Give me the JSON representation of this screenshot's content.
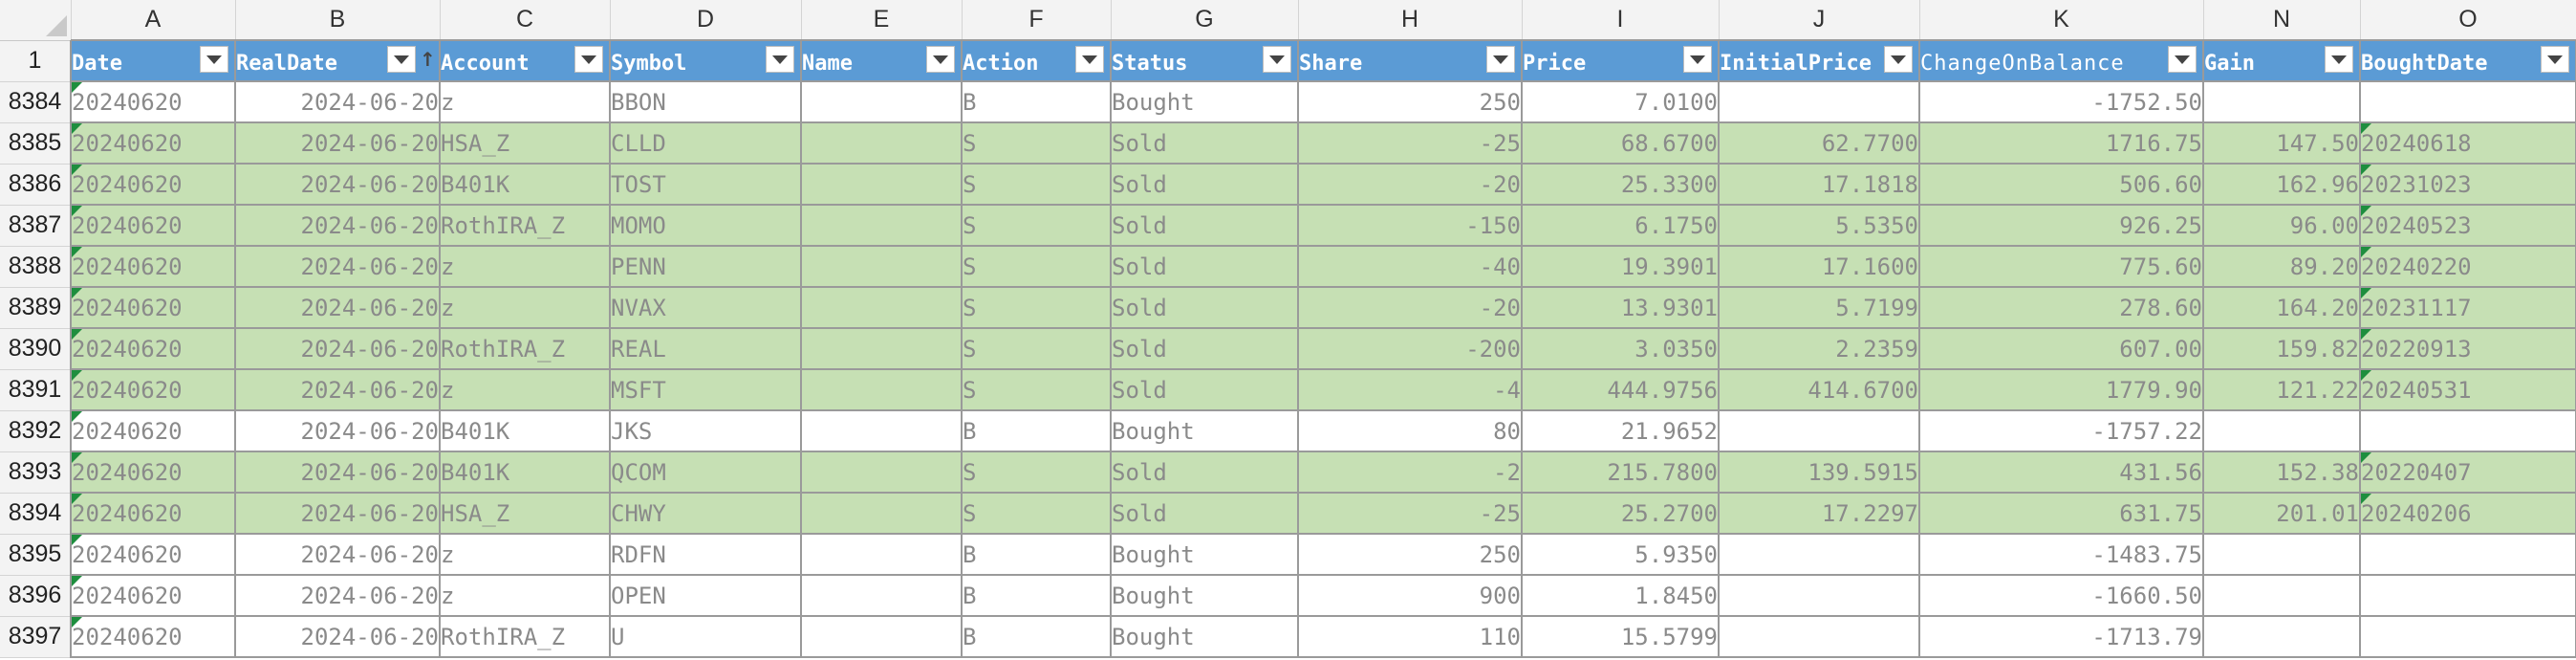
{
  "spreadsheet": {
    "column_letters": [
      "A",
      "B",
      "C",
      "D",
      "E",
      "F",
      "G",
      "H",
      "I",
      "J",
      "K",
      "N",
      "O"
    ],
    "header_row_number": "1",
    "headers": [
      {
        "key": "date",
        "label": "Date"
      },
      {
        "key": "realdate",
        "label": "RealDate",
        "sorted": true
      },
      {
        "key": "account",
        "label": "Account"
      },
      {
        "key": "symbol",
        "label": "Symbol"
      },
      {
        "key": "name",
        "label": "Name"
      },
      {
        "key": "action",
        "label": "Action"
      },
      {
        "key": "status",
        "label": "Status"
      },
      {
        "key": "share",
        "label": "Share"
      },
      {
        "key": "price",
        "label": "Price"
      },
      {
        "key": "initialprice",
        "label": "InitialPrice"
      },
      {
        "key": "change",
        "label": "ChangeOnBalance",
        "boxed": true
      },
      {
        "key": "gain",
        "label": "Gain"
      },
      {
        "key": "boughtdate",
        "label": "BoughtDate"
      }
    ],
    "rows": [
      {
        "num": "8384",
        "status_type": "bought",
        "cells": [
          "20240620",
          "2024-06-20",
          "z",
          "BBON",
          "",
          "B",
          "Bought",
          "250",
          "7.0100",
          "",
          "-1752.50",
          "",
          ""
        ],
        "marks": [
          0
        ]
      },
      {
        "num": "8385",
        "status_type": "sold",
        "cells": [
          "20240620",
          "2024-06-20",
          "HSA_Z",
          "CLLD",
          "",
          "S",
          "Sold",
          "-25",
          "68.6700",
          "62.7700",
          "1716.75",
          "147.50",
          "20240618"
        ],
        "marks": [
          0,
          12
        ]
      },
      {
        "num": "8386",
        "status_type": "sold",
        "cells": [
          "20240620",
          "2024-06-20",
          "B401K",
          "TOST",
          "",
          "S",
          "Sold",
          "-20",
          "25.3300",
          "17.1818",
          "506.60",
          "162.96",
          "20231023"
        ],
        "marks": [
          0,
          12
        ]
      },
      {
        "num": "8387",
        "status_type": "sold",
        "cells": [
          "20240620",
          "2024-06-20",
          "RothIRA_Z",
          "MOMO",
          "",
          "S",
          "Sold",
          "-150",
          "6.1750",
          "5.5350",
          "926.25",
          "96.00",
          "20240523"
        ],
        "marks": [
          0,
          12
        ]
      },
      {
        "num": "8388",
        "status_type": "sold",
        "cells": [
          "20240620",
          "2024-06-20",
          "z",
          "PENN",
          "",
          "S",
          "Sold",
          "-40",
          "19.3901",
          "17.1600",
          "775.60",
          "89.20",
          "20240220"
        ],
        "marks": [
          0,
          12
        ]
      },
      {
        "num": "8389",
        "status_type": "sold",
        "cells": [
          "20240620",
          "2024-06-20",
          "z",
          "NVAX",
          "",
          "S",
          "Sold",
          "-20",
          "13.9301",
          "5.7199",
          "278.60",
          "164.20",
          "20231117"
        ],
        "marks": [
          0,
          12
        ]
      },
      {
        "num": "8390",
        "status_type": "sold",
        "cells": [
          "20240620",
          "2024-06-20",
          "RothIRA_Z",
          "REAL",
          "",
          "S",
          "Sold",
          "-200",
          "3.0350",
          "2.2359",
          "607.00",
          "159.82",
          "20220913"
        ],
        "marks": [
          0,
          12
        ]
      },
      {
        "num": "8391",
        "status_type": "sold",
        "cells": [
          "20240620",
          "2024-06-20",
          "z",
          "MSFT",
          "",
          "S",
          "Sold",
          "-4",
          "444.9756",
          "414.6700",
          "1779.90",
          "121.22",
          "20240531"
        ],
        "marks": [
          0,
          12
        ]
      },
      {
        "num": "8392",
        "status_type": "bought",
        "cells": [
          "20240620",
          "2024-06-20",
          "B401K",
          "JKS",
          "",
          "B",
          "Bought",
          "80",
          "21.9652",
          "",
          "-1757.22",
          "",
          ""
        ],
        "marks": [
          0
        ]
      },
      {
        "num": "8393",
        "status_type": "sold",
        "cells": [
          "20240620",
          "2024-06-20",
          "B401K",
          "QCOM",
          "",
          "S",
          "Sold",
          "-2",
          "215.7800",
          "139.5915",
          "431.56",
          "152.38",
          "20220407"
        ],
        "marks": [
          0,
          12
        ]
      },
      {
        "num": "8394",
        "status_type": "sold",
        "cells": [
          "20240620",
          "2024-06-20",
          "HSA_Z",
          "CHWY",
          "",
          "S",
          "Sold",
          "-25",
          "25.2700",
          "17.2297",
          "631.75",
          "201.01",
          "20240206"
        ],
        "marks": [
          0,
          12
        ]
      },
      {
        "num": "8395",
        "status_type": "bought",
        "cells": [
          "20240620",
          "2024-06-20",
          "z",
          "RDFN",
          "",
          "B",
          "Bought",
          "250",
          "5.9350",
          "",
          "-1483.75",
          "",
          ""
        ],
        "marks": [
          0
        ]
      },
      {
        "num": "8396",
        "status_type": "bought",
        "cells": [
          "20240620",
          "2024-06-20",
          "z",
          "OPEN",
          "",
          "B",
          "Bought",
          "900",
          "1.8450",
          "",
          "-1660.50",
          "",
          ""
        ],
        "marks": [
          0
        ]
      },
      {
        "num": "8397",
        "status_type": "bought",
        "cells": [
          "20240620",
          "2024-06-20",
          "RothIRA_Z",
          "U",
          "",
          "B",
          "Bought",
          "110",
          "15.5799",
          "",
          "-1713.79",
          "",
          ""
        ],
        "marks": [
          0
        ]
      }
    ]
  },
  "colors": {
    "header_blue": "#5b9bd5",
    "sold_green": "#c6e0b4",
    "note_marker": "#1e8e3e"
  }
}
